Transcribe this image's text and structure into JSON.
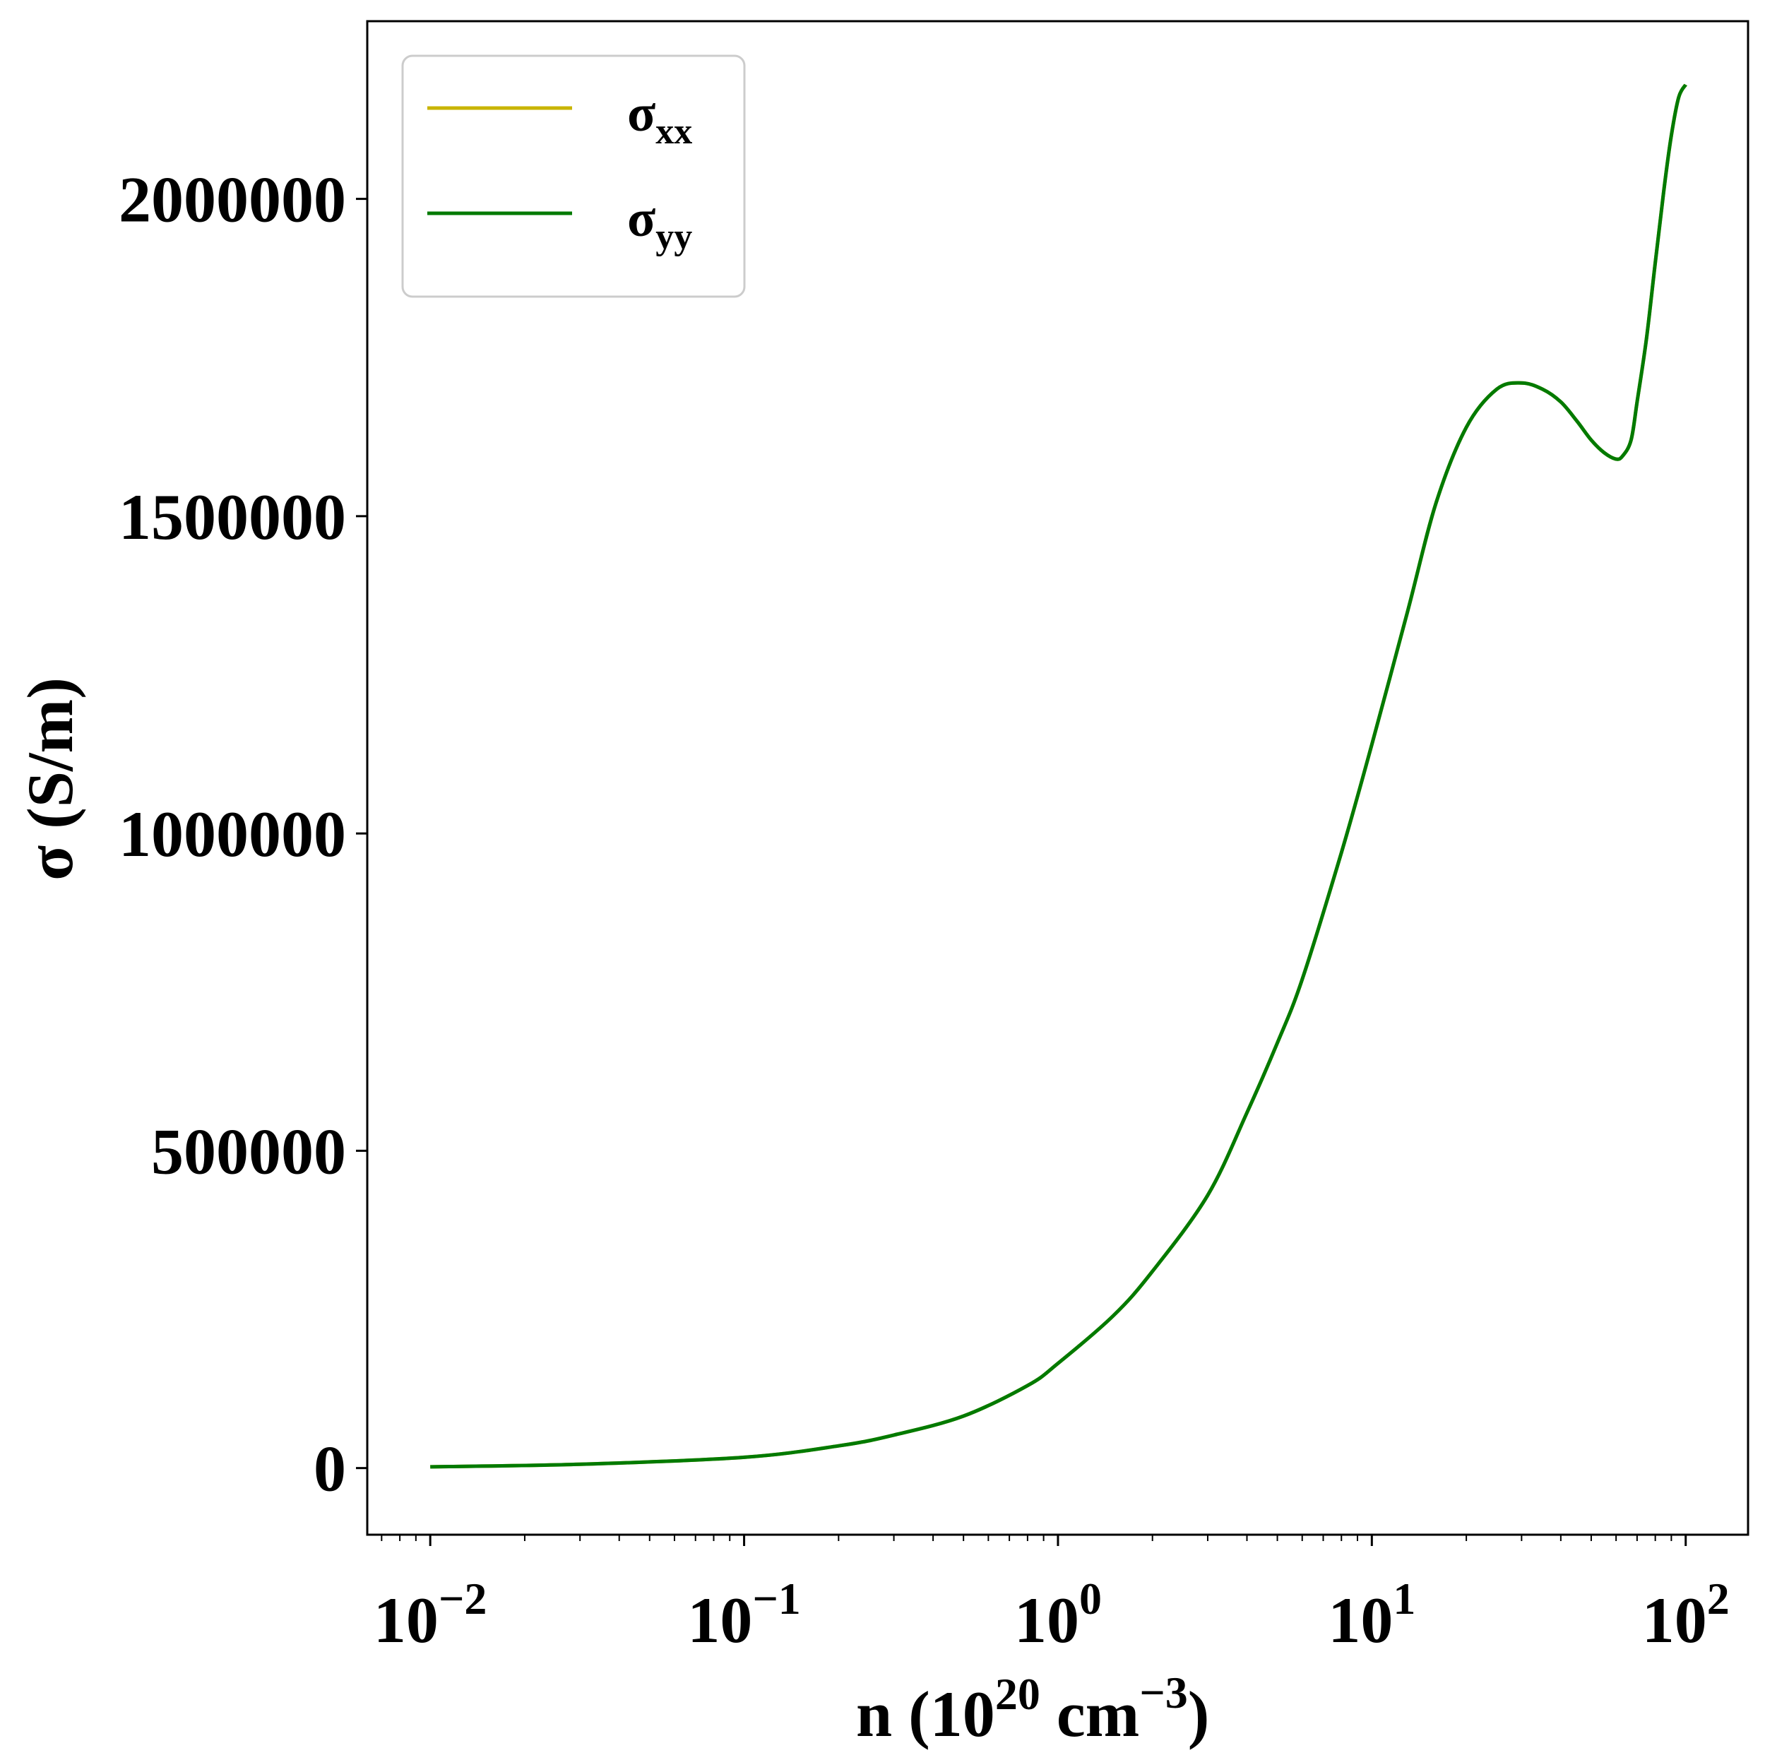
{
  "chart_data": {
    "type": "line",
    "xscale": "log",
    "xlim": [
      0.0063,
      158
    ],
    "ylim": [
      -105000,
      2280000
    ],
    "xlabel": {
      "base": "n (10",
      "sup1": "20",
      "mid": " cm",
      "sup2": "−3",
      "end": ")"
    },
    "ylabel": "σ (S/m)",
    "x_ticks": [
      {
        "base": "10",
        "exp": "−2",
        "value": 0.01
      },
      {
        "base": "10",
        "exp": "−1",
        "value": 0.1
      },
      {
        "base": "10",
        "exp": "0",
        "value": 1
      },
      {
        "base": "10",
        "exp": "1",
        "value": 10
      },
      {
        "base": "10",
        "exp": "2",
        "value": 100
      }
    ],
    "y_ticks": [
      {
        "label": "0",
        "value": 0
      },
      {
        "label": "500000",
        "value": 500000
      },
      {
        "label": "1000000",
        "value": 1000000
      },
      {
        "label": "1500000",
        "value": 1500000
      },
      {
        "label": "2000000",
        "value": 2000000
      }
    ],
    "grid": false,
    "legend_position": "top-left",
    "x": [
      0.01,
      0.03,
      0.1,
      0.2,
      0.3,
      0.5,
      0.8,
      1,
      1.5,
      2,
      3,
      4,
      5,
      6,
      8,
      10,
      13,
      16,
      20,
      25,
      30,
      35,
      40,
      45,
      50,
      55,
      60,
      63,
      67,
      70,
      75,
      80,
      85,
      90,
      95,
      100
    ],
    "series": [
      {
        "name": "xx",
        "color": "#c8b400",
        "values": [
          2000,
          6000,
          17000,
          35000,
          52000,
          82000,
          130000,
          165000,
          240000,
          310000,
          430000,
          560000,
          670000,
          770000,
          970000,
          1140000,
          1350000,
          1520000,
          1640000,
          1700000,
          1710000,
          1700000,
          1680000,
          1650000,
          1620000,
          1600000,
          1590000,
          1595000,
          1620000,
          1680000,
          1780000,
          1900000,
          2010000,
          2100000,
          2160000,
          2180000
        ]
      },
      {
        "name": "yy",
        "color": "#007a00",
        "values": [
          2000,
          6000,
          17000,
          35000,
          52000,
          82000,
          130000,
          165000,
          240000,
          310000,
          430000,
          560000,
          670000,
          770000,
          970000,
          1140000,
          1350000,
          1520000,
          1640000,
          1700000,
          1710000,
          1700000,
          1680000,
          1650000,
          1620000,
          1600000,
          1590000,
          1595000,
          1620000,
          1680000,
          1780000,
          1900000,
          2010000,
          2100000,
          2160000,
          2180000
        ]
      }
    ],
    "legend": [
      {
        "symbol": "σ",
        "sub": "xx",
        "color": "#c8b400"
      },
      {
        "symbol": "σ",
        "sub": "yy",
        "color": "#007a00"
      }
    ]
  }
}
